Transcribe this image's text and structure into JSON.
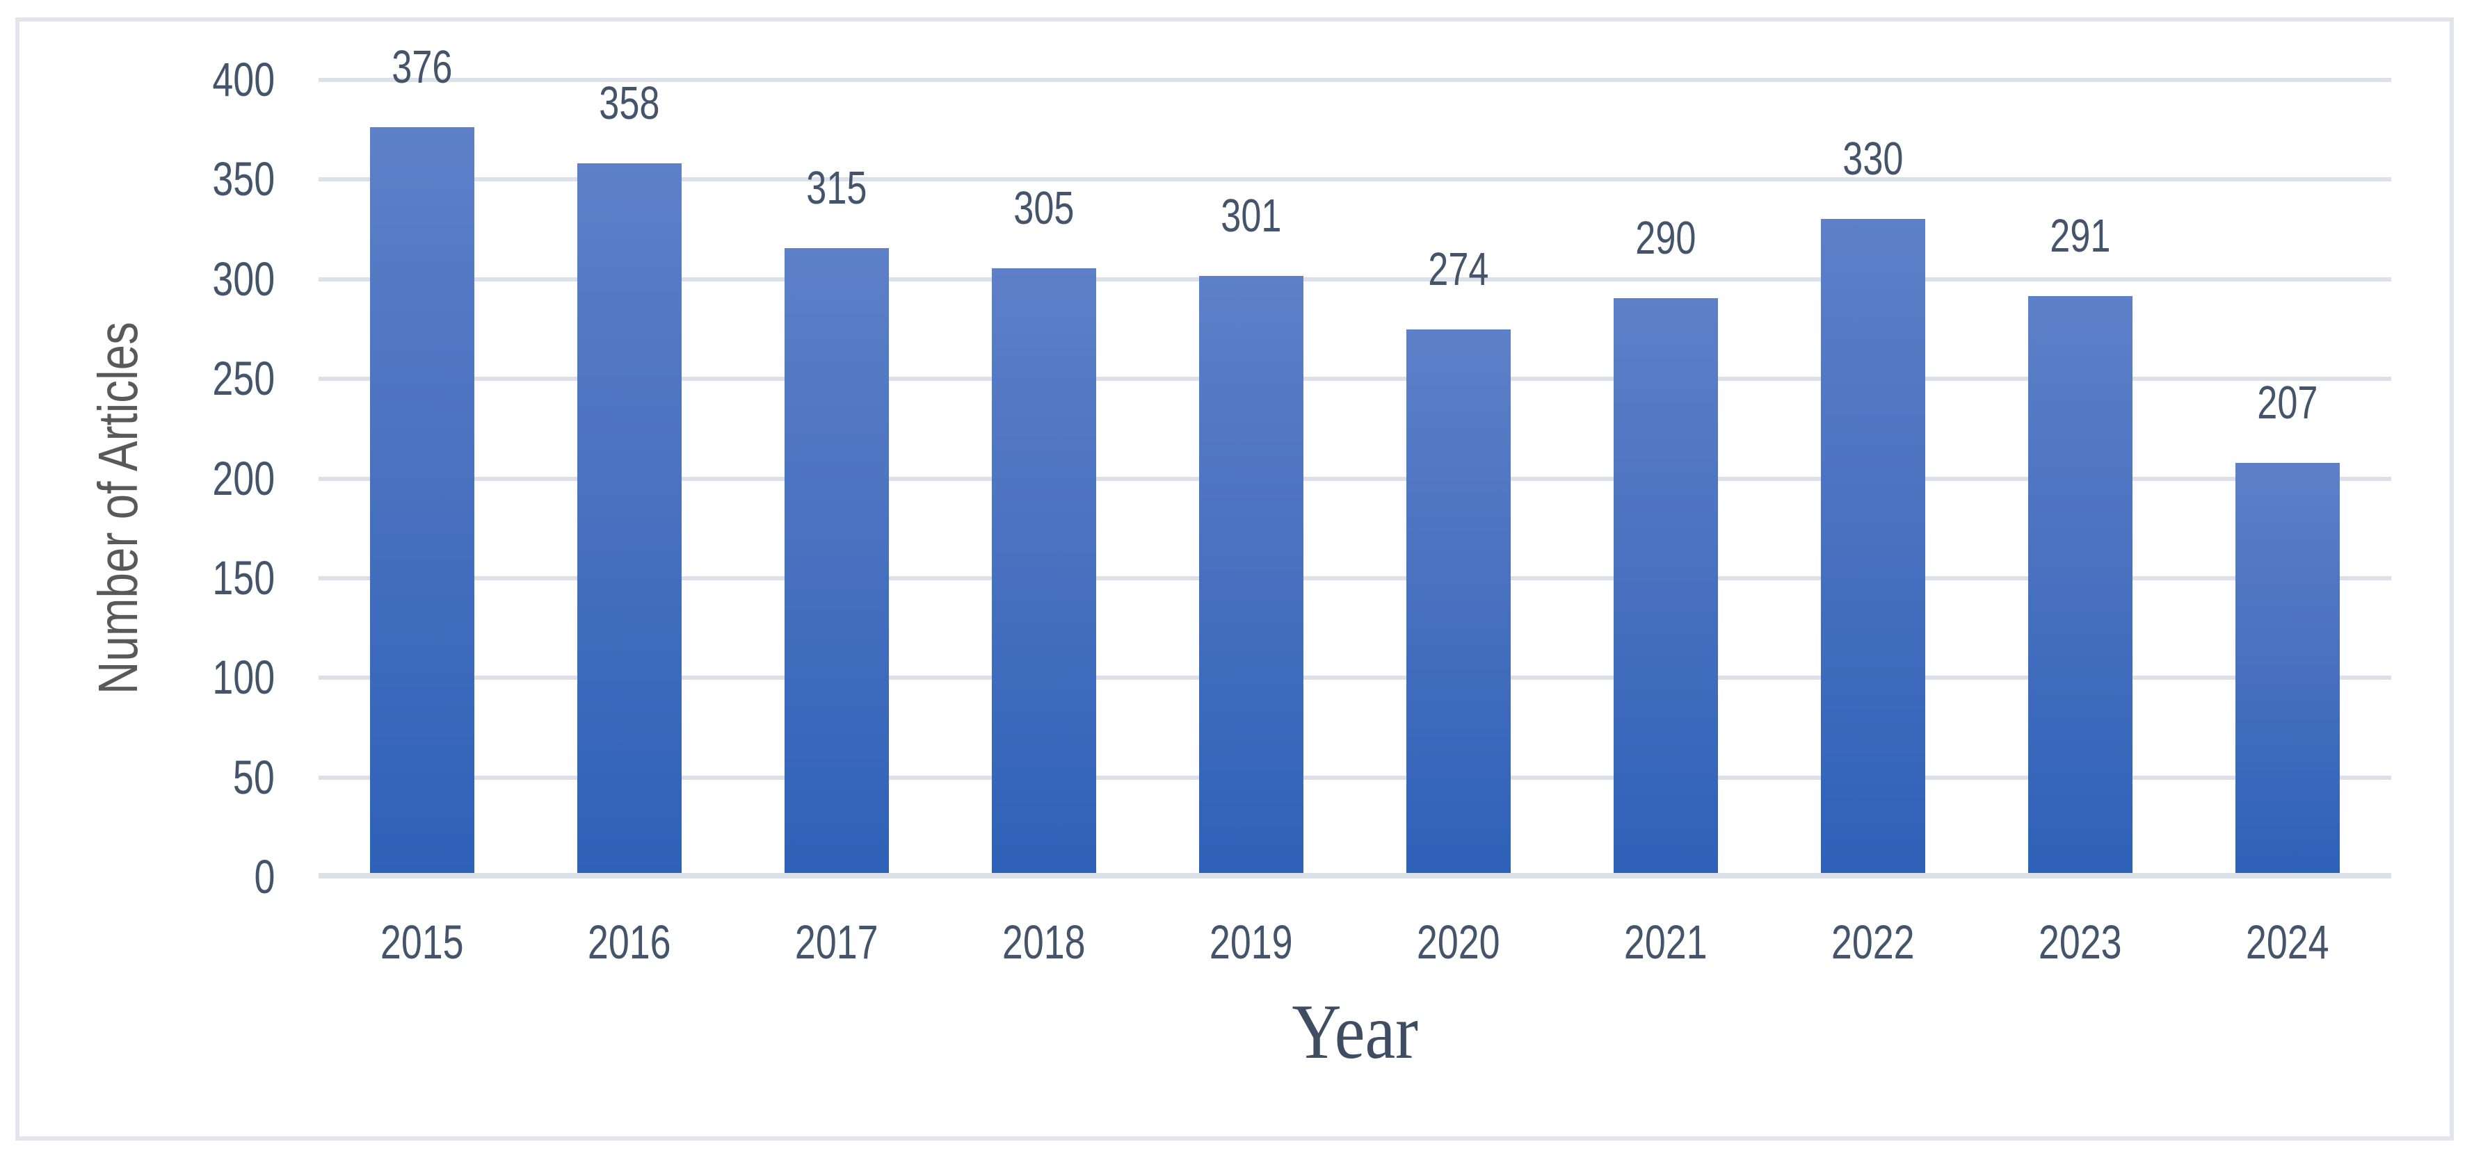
{
  "chart_data": {
    "type": "bar",
    "title": "",
    "categories": [
      "2015",
      "2016",
      "2017",
      "2018",
      "2019",
      "2020",
      "2021",
      "2022",
      "2023",
      "2024"
    ],
    "values": [
      376,
      358,
      315,
      305,
      301,
      274,
      290,
      330,
      291,
      207
    ],
    "xlabel": "Year",
    "ylabel": "Number of Articles",
    "ylim": [
      0,
      400
    ],
    "yticks": [
      0,
      50,
      100,
      150,
      200,
      250,
      300,
      350,
      400
    ],
    "grid": "horizontal-major-gridlines",
    "legend_position": "none",
    "data_labels_shown": true,
    "colors": {
      "bar_gradient_top": "#5d80c8",
      "bar_gradient_bottom": "#2e61b8",
      "tick_label_color": "#44546a",
      "data_label_color": "#44546a",
      "y_axis_title_color": "#595959",
      "x_axis_title_color": "#3f4d63",
      "gridline_color": "#dce0e8",
      "frame_border_color": "#e2e6ec",
      "background": "#ffffff"
    }
  }
}
